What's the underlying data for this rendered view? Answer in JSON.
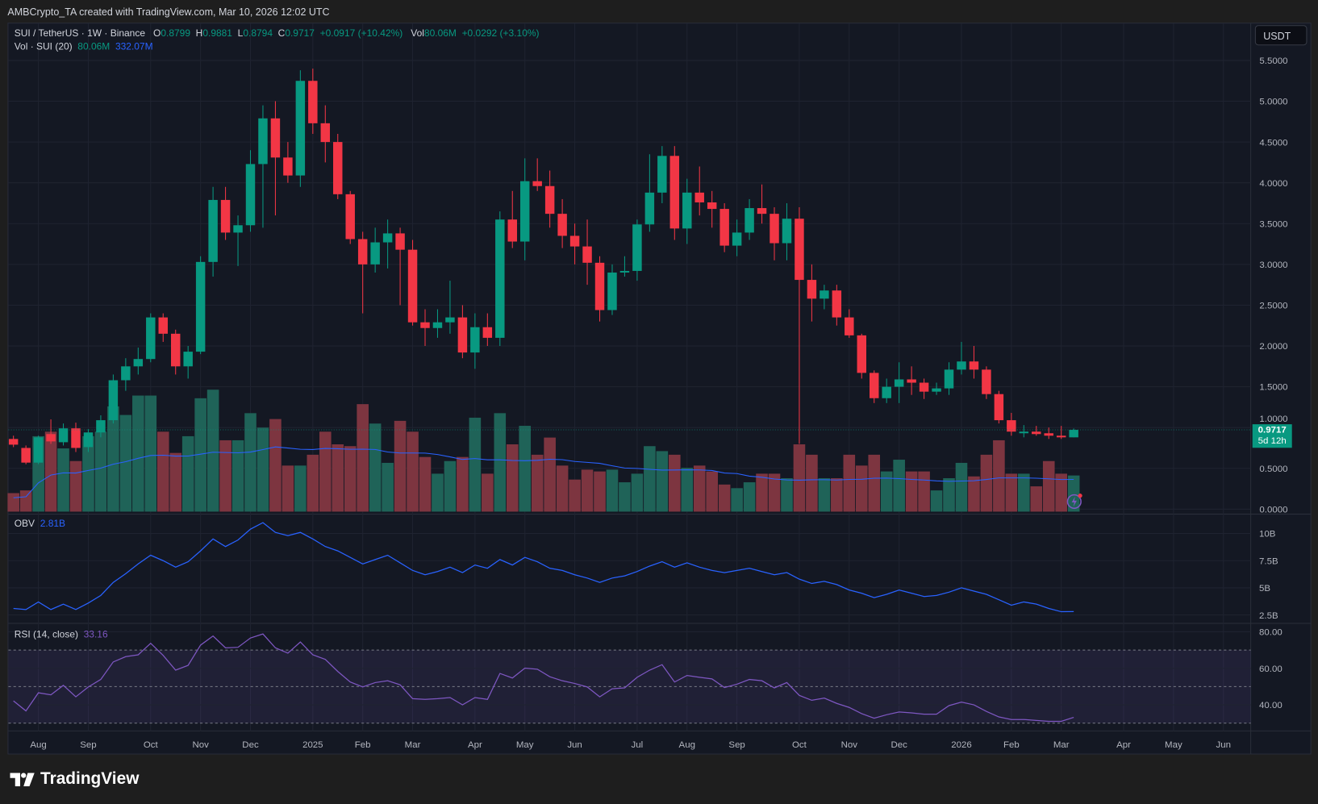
{
  "header": {
    "caption": "AMBCrypto_TA created with TradingView.com, Mar 10, 2026 12:02 UTC"
  },
  "legend": {
    "symbol": "SUI / TetherUS · 1W · Binance",
    "o_label": "O",
    "o": "0.8799",
    "h_label": "H",
    "h": "0.9881",
    "l_label": "L",
    "l": "0.8794",
    "c_label": "C",
    "c": "0.9717",
    "change": "+0.0917 (+10.42%)",
    "vol_label": "Vol",
    "vol": "80.06M",
    "vol_change": "+0.0292 (+3.10%)",
    "vol_indicator": "Vol · SUI (20)",
    "vol_value": "80.06M",
    "vol_ma": "332.07M",
    "obv_label": "OBV",
    "obv_value": "2.81B",
    "rsi_label": "RSI (14, close)",
    "rsi_value": "33.16"
  },
  "currency_button": "USDT",
  "price_label": {
    "price": "0.9717",
    "countdown": "5d 12h"
  },
  "footer": {
    "brand": "TradingView"
  },
  "colors": {
    "up": "#089981",
    "down": "#f23645",
    "vol_ma": "#2962ff",
    "obv": "#2962ff",
    "rsi": "#7e57c2",
    "background": "#141823"
  },
  "chart_data": [
    {
      "type": "candlestick",
      "interval": "1W",
      "first_candle_week": "2024-07-22",
      "y_ticks": [
        "0.0000",
        "0.5000",
        "1.0000",
        "1.5000",
        "2.0000",
        "2.5000",
        "3.0000",
        "3.5000",
        "4.0000",
        "4.5000",
        "5.0000",
        "5.5000"
      ],
      "ylim": [
        0,
        5.5
      ],
      "grid": true,
      "x_ticks": [
        {
          "label": "Aug",
          "date": "2024-08-05"
        },
        {
          "label": "Sep",
          "date": "2024-09-02"
        },
        {
          "label": "Oct",
          "date": "2024-10-07"
        },
        {
          "label": "Nov",
          "date": "2024-11-04"
        },
        {
          "label": "Dec",
          "date": "2024-12-02"
        },
        {
          "label": "2025",
          "date": "2025-01-06"
        },
        {
          "label": "Feb",
          "date": "2025-02-03"
        },
        {
          "label": "Mar",
          "date": "2025-03-03"
        },
        {
          "label": "Apr",
          "date": "2025-04-07"
        },
        {
          "label": "May",
          "date": "2025-05-05"
        },
        {
          "label": "Jun",
          "date": "2025-06-02"
        },
        {
          "label": "Jul",
          "date": "2025-07-07"
        },
        {
          "label": "Aug",
          "date": "2025-08-04"
        },
        {
          "label": "Sep",
          "date": "2025-09-01"
        },
        {
          "label": "Oct",
          "date": "2025-10-06"
        },
        {
          "label": "Nov",
          "date": "2025-11-03"
        },
        {
          "label": "Dec",
          "date": "2025-12-01"
        },
        {
          "label": "2026",
          "date": "2026-01-05"
        },
        {
          "label": "Feb",
          "date": "2026-02-02"
        },
        {
          "label": "Mar",
          "date": "2026-03-02"
        },
        {
          "label": "Apr",
          "date": "2026-04-06"
        },
        {
          "label": "May",
          "date": "2026-05-04"
        },
        {
          "label": "Jun",
          "date": "2026-06-01"
        }
      ],
      "ohlc": [
        [
          0.86,
          0.9,
          0.76,
          0.79
        ],
        [
          0.75,
          0.78,
          0.55,
          0.57
        ],
        [
          0.57,
          0.9,
          0.55,
          0.88
        ],
        [
          0.92,
          1.1,
          0.8,
          0.83
        ],
        [
          0.82,
          1.05,
          0.78,
          0.99
        ],
        [
          0.99,
          1.06,
          0.7,
          0.75
        ],
        [
          0.76,
          0.98,
          0.7,
          0.94
        ],
        [
          0.94,
          1.15,
          0.88,
          1.09
        ],
        [
          1.09,
          1.65,
          1.05,
          1.58
        ],
        [
          1.58,
          1.85,
          1.45,
          1.75
        ],
        [
          1.75,
          1.98,
          1.65,
          1.84
        ],
        [
          1.84,
          2.4,
          1.8,
          2.35
        ],
        [
          2.35,
          2.4,
          2.05,
          2.15
        ],
        [
          2.15,
          2.2,
          1.65,
          1.75
        ],
        [
          1.75,
          2.0,
          1.6,
          1.93
        ],
        [
          1.93,
          3.1,
          1.9,
          3.03
        ],
        [
          3.03,
          3.95,
          2.85,
          3.79
        ],
        [
          3.79,
          3.95,
          3.3,
          3.39
        ],
        [
          3.39,
          3.6,
          2.98,
          3.48
        ],
        [
          3.48,
          4.4,
          3.4,
          4.23
        ],
        [
          4.23,
          4.95,
          3.45,
          4.79
        ],
        [
          4.79,
          5.0,
          3.6,
          4.31
        ],
        [
          4.31,
          4.5,
          4.0,
          4.09
        ],
        [
          4.09,
          5.38,
          3.95,
          5.25
        ],
        [
          5.25,
          5.4,
          4.6,
          4.73
        ],
        [
          4.73,
          4.95,
          4.25,
          4.5
        ],
        [
          4.5,
          4.6,
          3.8,
          3.86
        ],
        [
          3.86,
          3.9,
          3.25,
          3.31
        ],
        [
          3.31,
          3.4,
          2.4,
          3.0
        ],
        [
          3.0,
          3.45,
          2.9,
          3.27
        ],
        [
          3.27,
          3.55,
          2.95,
          3.38
        ],
        [
          3.38,
          3.45,
          2.5,
          3.18
        ],
        [
          3.18,
          3.3,
          2.25,
          2.29
        ],
        [
          2.29,
          2.45,
          2.0,
          2.22
        ],
        [
          2.22,
          2.45,
          2.1,
          2.29
        ],
        [
          2.29,
          2.8,
          2.15,
          2.35
        ],
        [
          2.35,
          2.5,
          1.85,
          1.92
        ],
        [
          1.92,
          2.4,
          1.72,
          2.23
        ],
        [
          2.23,
          2.4,
          2.0,
          2.1
        ],
        [
          2.1,
          3.65,
          2.0,
          3.55
        ],
        [
          3.55,
          3.9,
          3.2,
          3.28
        ],
        [
          3.28,
          4.3,
          3.05,
          4.02
        ],
        [
          4.02,
          4.3,
          3.9,
          3.96
        ],
        [
          3.96,
          4.15,
          3.45,
          3.62
        ],
        [
          3.62,
          3.8,
          3.2,
          3.35
        ],
        [
          3.35,
          3.5,
          3.0,
          3.22
        ],
        [
          3.22,
          3.55,
          2.75,
          3.02
        ],
        [
          3.02,
          3.1,
          2.3,
          2.44
        ],
        [
          2.44,
          3.0,
          2.38,
          2.9
        ],
        [
          2.9,
          3.1,
          2.85,
          2.92
        ],
        [
          2.92,
          3.55,
          2.8,
          3.49
        ],
        [
          3.49,
          4.35,
          3.4,
          3.88
        ],
        [
          3.88,
          4.45,
          3.75,
          4.33
        ],
        [
          4.33,
          4.45,
          3.3,
          3.44
        ],
        [
          3.44,
          4.05,
          3.25,
          3.88
        ],
        [
          3.88,
          4.2,
          3.6,
          3.76
        ],
        [
          3.76,
          3.9,
          3.45,
          3.68
        ],
        [
          3.68,
          3.75,
          3.15,
          3.23
        ],
        [
          3.23,
          3.55,
          3.1,
          3.39
        ],
        [
          3.39,
          3.8,
          3.3,
          3.69
        ],
        [
          3.69,
          3.98,
          3.5,
          3.62
        ],
        [
          3.62,
          3.7,
          3.05,
          3.26
        ],
        [
          3.26,
          3.75,
          3.05,
          3.56
        ],
        [
          3.56,
          3.7,
          0.8,
          2.81
        ],
        [
          2.81,
          3.0,
          2.3,
          2.58
        ],
        [
          2.58,
          2.75,
          2.45,
          2.68
        ],
        [
          2.68,
          2.75,
          2.25,
          2.35
        ],
        [
          2.35,
          2.45,
          2.1,
          2.13
        ],
        [
          2.13,
          2.15,
          1.6,
          1.67
        ],
        [
          1.67,
          1.7,
          1.3,
          1.36
        ],
        [
          1.36,
          1.6,
          1.3,
          1.5
        ],
        [
          1.5,
          1.8,
          1.3,
          1.59
        ],
        [
          1.59,
          1.75,
          1.4,
          1.55
        ],
        [
          1.55,
          1.6,
          1.35,
          1.44
        ],
        [
          1.44,
          1.55,
          1.4,
          1.48
        ],
        [
          1.48,
          1.8,
          1.4,
          1.71
        ],
        [
          1.71,
          2.05,
          1.65,
          1.81
        ],
        [
          1.81,
          2.0,
          1.6,
          1.71
        ],
        [
          1.71,
          1.75,
          1.35,
          1.41
        ],
        [
          1.41,
          1.45,
          1.05,
          1.09
        ],
        [
          1.09,
          1.18,
          0.9,
          0.95
        ],
        [
          0.93,
          1.03,
          0.88,
          0.95
        ],
        [
          0.95,
          1.02,
          0.9,
          0.92
        ],
        [
          0.93,
          1.0,
          0.86,
          0.9
        ],
        [
          0.9,
          1.02,
          0.86,
          0.88
        ],
        [
          0.8799,
          0.9881,
          0.8794,
          0.9717
        ]
      ],
      "volume_m": [
        41,
        47,
        167,
        177,
        140,
        112,
        167,
        177,
        233,
        214,
        257,
        257,
        177,
        130,
        167,
        251,
        270,
        158,
        158,
        218,
        186,
        205,
        102,
        102,
        126,
        177,
        149,
        145,
        238,
        195,
        108,
        201,
        177,
        121,
        84,
        112,
        121,
        208,
        84,
        218,
        149,
        190,
        126,
        164,
        102,
        71,
        93,
        89,
        93,
        65,
        84,
        145,
        134,
        126,
        97,
        102,
        89,
        60,
        52,
        65,
        84,
        84,
        74,
        149,
        126,
        74,
        74,
        126,
        102,
        126,
        89,
        115,
        89,
        89,
        47,
        74,
        108,
        78,
        126,
        158,
        84,
        84,
        56,
        112,
        84,
        80.06
      ]
    },
    {
      "type": "line",
      "name": "OBV",
      "y_ticks": [
        "2.5B",
        "5B",
        "7.5B",
        "10B"
      ],
      "values_b": [
        3.1,
        3.0,
        3.7,
        3.0,
        3.5,
        3.0,
        3.6,
        4.3,
        5.5,
        6.3,
        7.2,
        8.0,
        7.5,
        6.9,
        7.4,
        8.4,
        9.5,
        8.8,
        9.4,
        10.4,
        11.0,
        10.1,
        9.8,
        10.1,
        9.5,
        8.8,
        8.4,
        7.8,
        7.2,
        7.6,
        8.0,
        7.3,
        6.6,
        6.2,
        6.5,
        6.9,
        6.4,
        7.1,
        6.8,
        7.6,
        7.1,
        7.8,
        7.4,
        6.8,
        6.6,
        6.2,
        5.9,
        5.5,
        5.9,
        6.1,
        6.5,
        7.0,
        7.4,
        6.9,
        7.3,
        6.9,
        6.6,
        6.4,
        6.6,
        6.8,
        6.5,
        6.2,
        6.4,
        5.8,
        5.4,
        5.6,
        5.3,
        4.8,
        4.5,
        4.1,
        4.4,
        4.8,
        4.5,
        4.2,
        4.3,
        4.6,
        5.0,
        4.7,
        4.4,
        3.9,
        3.4,
        3.7,
        3.5,
        3.1,
        2.8,
        2.81
      ]
    },
    {
      "type": "line",
      "name": "RSI (14, close)",
      "y_ticks": [
        "40.00",
        "60.00",
        "80.00"
      ],
      "bands": [
        30,
        50,
        70
      ],
      "values": [
        42.2,
        36.7,
        46.6,
        45.5,
        50.7,
        44.4,
        49.8,
        53.9,
        63.5,
        66.4,
        67.4,
        73.7,
        67.1,
        59,
        61.6,
        72.7,
        77.7,
        71.2,
        71.5,
        76.6,
        78.8,
        71.2,
        68.3,
        74.4,
        67.4,
        64.9,
        58.3,
        52.5,
        49.8,
        52.2,
        53.2,
        51,
        43.4,
        43,
        43.4,
        44,
        40,
        44,
        43,
        57.2,
        54.7,
        60.1,
        59.5,
        55.4,
        53.2,
        51.7,
        49.8,
        44.4,
        48.8,
        49.3,
        55.1,
        59,
        62,
        52.5,
        56.1,
        55.1,
        54.2,
        49.5,
        51.3,
        53.9,
        53.2,
        49.3,
        52.2,
        45.2,
        42.5,
        43.7,
        40.8,
        38.6,
        35.2,
        32.7,
        34.6,
        36.1,
        35.6,
        34.9,
        34.9,
        39.6,
        41.5,
        40,
        36.4,
        33.4,
        32,
        32,
        31.5,
        31,
        31,
        33.16
      ]
    }
  ]
}
